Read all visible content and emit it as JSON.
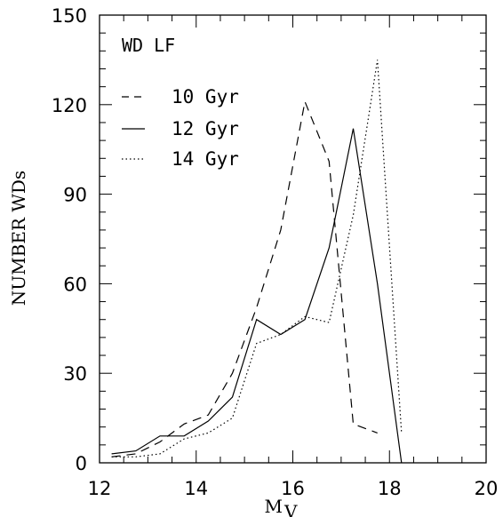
{
  "chart_data": {
    "type": "line",
    "title": "WD LF",
    "xlabel": "M",
    "xlabel_sub": "V",
    "ylabel": "NUMBER WDs",
    "xlim": [
      12,
      20
    ],
    "ylim": [
      0,
      150
    ],
    "xticks": [
      "12",
      "14",
      "16",
      "18",
      "20"
    ],
    "yticks": [
      "0",
      "30",
      "60",
      "90",
      "120",
      "150"
    ],
    "grid": false,
    "legend_position": "upper-left",
    "series": [
      {
        "name": "10 Gyr",
        "style": "dashed",
        "color": "#000000",
        "x": [
          12.25,
          12.75,
          13.25,
          13.75,
          14.25,
          14.75,
          15.25,
          15.75,
          16.25,
          16.75,
          17.25,
          17.75
        ],
        "y": [
          2,
          3,
          7,
          13,
          16,
          30,
          52,
          78,
          121,
          101,
          13,
          10
        ]
      },
      {
        "name": "12 Gyr",
        "style": "solid",
        "color": "#000000",
        "x": [
          12.25,
          12.75,
          13.25,
          13.75,
          14.25,
          14.75,
          15.25,
          15.75,
          16.25,
          16.75,
          17.25,
          17.75,
          18.25
        ],
        "y": [
          3,
          4,
          9,
          9,
          14,
          22,
          48,
          43,
          48,
          72,
          112,
          60,
          0
        ]
      },
      {
        "name": "14 Gyr",
        "style": "dotted",
        "color": "#000000",
        "x": [
          12.25,
          12.75,
          13.25,
          13.75,
          14.25,
          14.75,
          15.25,
          15.75,
          16.25,
          16.75,
          17.25,
          17.75,
          18.25
        ],
        "y": [
          2,
          2,
          3,
          8,
          10,
          15,
          40,
          43,
          49,
          47,
          83,
          135,
          10
        ]
      }
    ]
  }
}
